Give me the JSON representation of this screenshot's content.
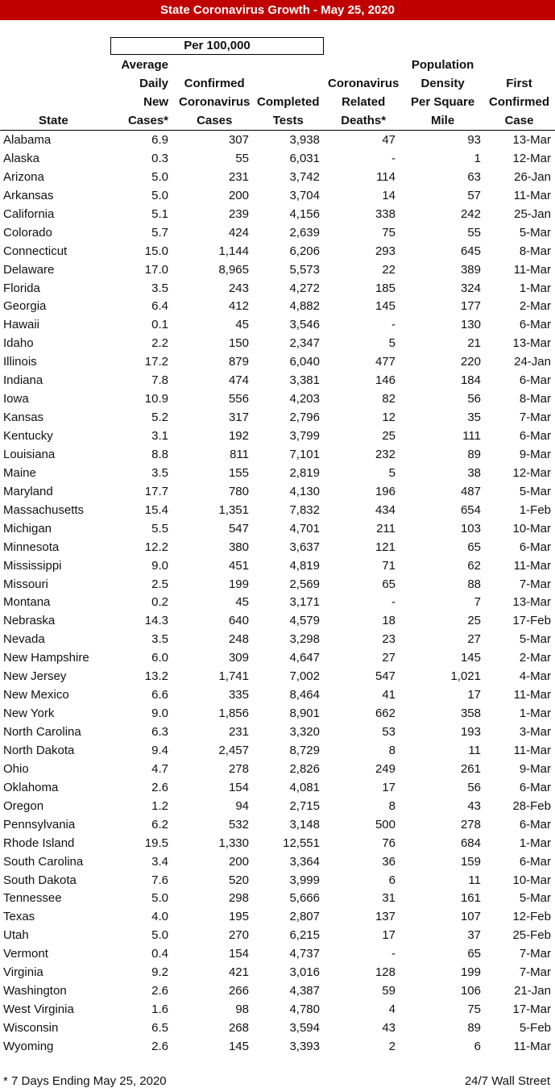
{
  "title": "State Coronavirus Growth  - May 25, 2020",
  "per_label": "Per 100,000",
  "headers": {
    "state": [
      "State"
    ],
    "avg": [
      "Average",
      "Daily",
      "New",
      "Cases*"
    ],
    "cases": [
      "Confirmed",
      "Coronavirus",
      "Cases"
    ],
    "tests": [
      "Completed",
      "Tests"
    ],
    "deaths": [
      "Coronavirus",
      "Related",
      "Deaths*"
    ],
    "density": [
      "Population",
      "Density",
      "Per Square",
      "Mile"
    ],
    "first": [
      "First",
      "Confirmed",
      "Case"
    ]
  },
  "rows": [
    [
      "Alabama",
      "6.9",
      "307",
      "3,938",
      "47",
      "93",
      "13-Mar"
    ],
    [
      "Alaska",
      "0.3",
      "55",
      "6,031",
      "-",
      "1",
      "12-Mar"
    ],
    [
      "Arizona",
      "5.0",
      "231",
      "3,742",
      "114",
      "63",
      "26-Jan"
    ],
    [
      "Arkansas",
      "5.0",
      "200",
      "3,704",
      "14",
      "57",
      "11-Mar"
    ],
    [
      "California",
      "5.1",
      "239",
      "4,156",
      "338",
      "242",
      "25-Jan"
    ],
    [
      "Colorado",
      "5.7",
      "424",
      "2,639",
      "75",
      "55",
      "5-Mar"
    ],
    [
      "Connecticut",
      "15.0",
      "1,144",
      "6,206",
      "293",
      "645",
      "8-Mar"
    ],
    [
      "Delaware",
      "17.0",
      "8,965",
      "5,573",
      "22",
      "389",
      "11-Mar"
    ],
    [
      "Florida",
      "3.5",
      "243",
      "4,272",
      "185",
      "324",
      "1-Mar"
    ],
    [
      "Georgia",
      "6.4",
      "412",
      "4,882",
      "145",
      "177",
      "2-Mar"
    ],
    [
      "Hawaii",
      "0.1",
      "45",
      "3,546",
      "-",
      "130",
      "6-Mar"
    ],
    [
      "Idaho",
      "2.2",
      "150",
      "2,347",
      "5",
      "21",
      "13-Mar"
    ],
    [
      "Illinois",
      "17.2",
      "879",
      "6,040",
      "477",
      "220",
      "24-Jan"
    ],
    [
      "Indiana",
      "7.8",
      "474",
      "3,381",
      "146",
      "184",
      "6-Mar"
    ],
    [
      "Iowa",
      "10.9",
      "556",
      "4,203",
      "82",
      "56",
      "8-Mar"
    ],
    [
      "Kansas",
      "5.2",
      "317",
      "2,796",
      "12",
      "35",
      "7-Mar"
    ],
    [
      "Kentucky",
      "3.1",
      "192",
      "3,799",
      "25",
      "111",
      "6-Mar"
    ],
    [
      "Louisiana",
      "8.8",
      "811",
      "7,101",
      "232",
      "89",
      "9-Mar"
    ],
    [
      "Maine",
      "3.5",
      "155",
      "2,819",
      "5",
      "38",
      "12-Mar"
    ],
    [
      "Maryland",
      "17.7",
      "780",
      "4,130",
      "196",
      "487",
      "5-Mar"
    ],
    [
      "Massachusetts",
      "15.4",
      "1,351",
      "7,832",
      "434",
      "654",
      "1-Feb"
    ],
    [
      "Michigan",
      "5.5",
      "547",
      "4,701",
      "211",
      "103",
      "10-Mar"
    ],
    [
      "Minnesota",
      "12.2",
      "380",
      "3,637",
      "121",
      "65",
      "6-Mar"
    ],
    [
      "Mississippi",
      "9.0",
      "451",
      "4,819",
      "71",
      "62",
      "11-Mar"
    ],
    [
      "Missouri",
      "2.5",
      "199",
      "2,569",
      "65",
      "88",
      "7-Mar"
    ],
    [
      "Montana",
      "0.2",
      "45",
      "3,171",
      "-",
      "7",
      "13-Mar"
    ],
    [
      "Nebraska",
      "14.3",
      "640",
      "4,579",
      "18",
      "25",
      "17-Feb"
    ],
    [
      "Nevada",
      "3.5",
      "248",
      "3,298",
      "23",
      "27",
      "5-Mar"
    ],
    [
      "New Hampshire",
      "6.0",
      "309",
      "4,647",
      "27",
      "145",
      "2-Mar"
    ],
    [
      "New Jersey",
      "13.2",
      "1,741",
      "7,002",
      "547",
      "1,021",
      "4-Mar"
    ],
    [
      "New Mexico",
      "6.6",
      "335",
      "8,464",
      "41",
      "17",
      "11-Mar"
    ],
    [
      "New York",
      "9.0",
      "1,856",
      "8,901",
      "662",
      "358",
      "1-Mar"
    ],
    [
      "North Carolina",
      "6.3",
      "231",
      "3,320",
      "53",
      "193",
      "3-Mar"
    ],
    [
      "North Dakota",
      "9.4",
      "2,457",
      "8,729",
      "8",
      "11",
      "11-Mar"
    ],
    [
      "Ohio",
      "4.7",
      "278",
      "2,826",
      "249",
      "261",
      "9-Mar"
    ],
    [
      "Oklahoma",
      "2.6",
      "154",
      "4,081",
      "17",
      "56",
      "6-Mar"
    ],
    [
      "Oregon",
      "1.2",
      "94",
      "2,715",
      "8",
      "43",
      "28-Feb"
    ],
    [
      "Pennsylvania",
      "6.2",
      "532",
      "3,148",
      "500",
      "278",
      "6-Mar"
    ],
    [
      "Rhode Island",
      "19.5",
      "1,330",
      "12,551",
      "76",
      "684",
      "1-Mar"
    ],
    [
      "South Carolina",
      "3.4",
      "200",
      "3,364",
      "36",
      "159",
      "6-Mar"
    ],
    [
      "South Dakota",
      "7.6",
      "520",
      "3,999",
      "6",
      "11",
      "10-Mar"
    ],
    [
      "Tennessee",
      "5.0",
      "298",
      "5,666",
      "31",
      "161",
      "5-Mar"
    ],
    [
      "Texas",
      "4.0",
      "195",
      "2,807",
      "137",
      "107",
      "12-Feb"
    ],
    [
      "Utah",
      "5.0",
      "270",
      "6,215",
      "17",
      "37",
      "25-Feb"
    ],
    [
      "Vermont",
      "0.4",
      "154",
      "4,737",
      "-",
      "65",
      "7-Mar"
    ],
    [
      "Virginia",
      "9.2",
      "421",
      "3,016",
      "128",
      "199",
      "7-Mar"
    ],
    [
      "Washington",
      "2.6",
      "266",
      "4,387",
      "59",
      "106",
      "21-Jan"
    ],
    [
      "West Virginia",
      "1.6",
      "98",
      "4,780",
      "4",
      "75",
      "17-Mar"
    ],
    [
      "Wisconsin",
      "6.5",
      "268",
      "3,594",
      "43",
      "89",
      "5-Feb"
    ],
    [
      "Wyoming",
      "2.6",
      "145",
      "3,393",
      "2",
      "6",
      "11-Mar"
    ]
  ],
  "footer": {
    "note": "* 7 Days Ending May 25, 2020",
    "source": "24/7 Wall Street"
  },
  "colors": {
    "title_bg": "#c00000",
    "title_fg": "#ffffff"
  }
}
